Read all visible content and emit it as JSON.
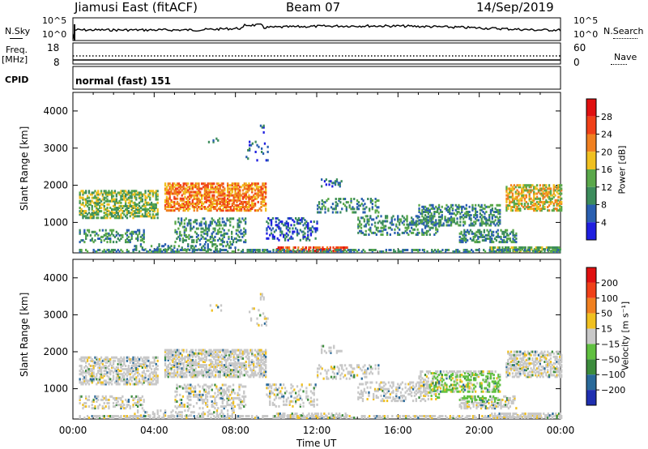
{
  "header": {
    "station": "Jiamusi East (fitACF)",
    "beam": "Beam 07",
    "date": "14/Sep/2019"
  },
  "strip_labels": {
    "nsky": "N.Sky",
    "nsearch": "N.Search",
    "freq_line1": "Freq.",
    "freq_line2": "[MHz]",
    "nave": "Nave",
    "cpid": "CPID",
    "cpid_value": "normal (fast) 151",
    "nsky_top": "10^5",
    "nsky_bottom": "10^0",
    "nsearch_top": "10^5",
    "nsearch_bottom": "10^0",
    "freq_top": "18",
    "freq_bottom": "8",
    "nave_top": "60",
    "nave_bottom": "0"
  },
  "chart_data": [
    {
      "type": "heatmap",
      "title": "",
      "ylabel": "Slant Range [km]",
      "xlabel": "",
      "ylim": [
        180,
        4500
      ],
      "yticks": [
        "1000",
        "2000",
        "3000",
        "4000"
      ],
      "colorbar_label": "Power [dB]",
      "colorbar_ticks": [
        "4",
        "8",
        "12",
        "16",
        "20",
        "24",
        "28"
      ],
      "colorbar_colors": [
        "#1f1fe0",
        "#2a5fb0",
        "#3c8c5c",
        "#5aa84a",
        "#f0c020",
        "#f08020",
        "#f04018",
        "#e01010"
      ]
    },
    {
      "type": "heatmap",
      "title": "",
      "ylabel": "Slant Range [km]",
      "xlabel": "Time UT",
      "ylim": [
        180,
        4500
      ],
      "yticks": [
        "1000",
        "2000",
        "3000",
        "4000"
      ],
      "xticks": [
        "00:00",
        "04:00",
        "08:00",
        "12:00",
        "16:00",
        "20:00",
        "00:00"
      ],
      "colorbar_label": "Velocity [m s⁻¹]",
      "colorbar_ticks": [
        "200",
        "100",
        "50",
        "15",
        "-15",
        "-50",
        "-100",
        "-200"
      ],
      "colorbar_colors": [
        "#1f2fb0",
        "#2a6a9a",
        "#3c8c3c",
        "#60c040",
        "#c8c8c8",
        "#f0c020",
        "#f08020",
        "#f04018",
        "#e01010"
      ]
    }
  ]
}
